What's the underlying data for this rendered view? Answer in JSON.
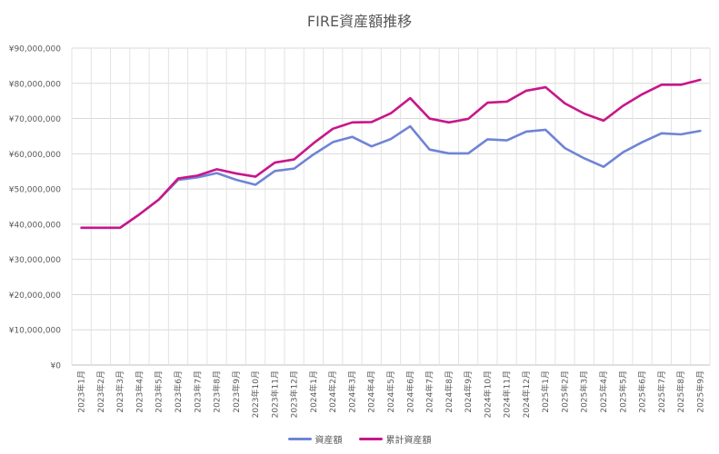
{
  "chart_data": {
    "type": "line",
    "title": "FIRE資産額推移",
    "xlabel": "",
    "ylabel": "",
    "ylim": [
      0,
      90000000
    ],
    "y_ticks": [
      0,
      10000000,
      20000000,
      30000000,
      40000000,
      50000000,
      60000000,
      70000000,
      80000000,
      90000000
    ],
    "y_tick_labels": [
      "¥0",
      "¥10,000,000",
      "¥20,000,000",
      "¥30,000,000",
      "¥40,000,000",
      "¥50,000,000",
      "¥60,000,000",
      "¥70,000,000",
      "¥80,000,000",
      "¥90,000,000"
    ],
    "grid": true,
    "legend_position": "bottom",
    "categories": [
      "2023年1月",
      "2023年2月",
      "2023年3月",
      "2023年4月",
      "2023年5月",
      "2023年6月",
      "2023年7月",
      "2023年8月",
      "2023年9月",
      "2023年10月",
      "2023年11月",
      "2023年12月",
      "2024年1月",
      "2024年2月",
      "2024年3月",
      "2024年4月",
      "2024年5月",
      "2024年6月",
      "2024年7月",
      "2024年8月",
      "2024年9月",
      "2024年10月",
      "2024年11月",
      "2024年12月",
      "2025年1月",
      "2025年2月",
      "2025年3月",
      "2025年4月",
      "2025年5月",
      "2025年6月",
      "2025年7月",
      "2025年8月",
      "2025年9月"
    ],
    "series": [
      {
        "name": "資産額",
        "color": "#6f84d6",
        "values": [
          39000000,
          39000000,
          39000000,
          42800000,
          47000000,
          52600000,
          53300000,
          54500000,
          52600000,
          51200000,
          55100000,
          55800000,
          59800000,
          63300000,
          64800000,
          62100000,
          64200000,
          67800000,
          61200000,
          60100000,
          60100000,
          64100000,
          63800000,
          66300000,
          66800000,
          61600000,
          58700000,
          56300000,
          60400000,
          63300000,
          65800000,
          65500000,
          66500000
        ]
      },
      {
        "name": "累計資産額",
        "color": "#c8168a",
        "values": [
          39000000,
          39000000,
          39000000,
          42800000,
          47000000,
          53000000,
          53800000,
          55600000,
          54400000,
          53500000,
          57500000,
          58400000,
          63000000,
          67100000,
          68900000,
          69000000,
          71500000,
          75800000,
          70000000,
          68900000,
          69900000,
          74500000,
          74800000,
          77900000,
          78900000,
          74300000,
          71400000,
          69400000,
          73600000,
          76900000,
          79600000,
          79600000,
          81000000
        ]
      }
    ]
  }
}
